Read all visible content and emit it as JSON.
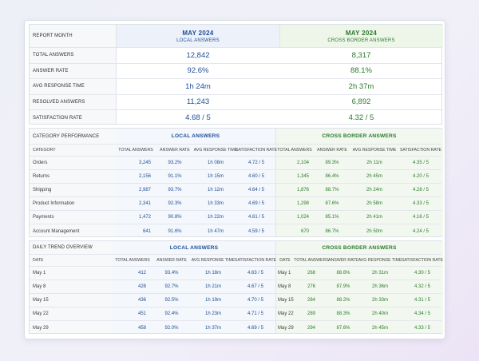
{
  "summary": {
    "header_label": "REPORT MONTH",
    "local": {
      "month": "MAY 2024",
      "label": "LOCAL ANSWERS"
    },
    "cross": {
      "month": "MAY 2024",
      "label": "CROSS BORDER ANSWERS"
    },
    "rows": [
      {
        "label": "TOTAL ANSWERS",
        "local": "12,842",
        "cross": "8,317"
      },
      {
        "label": "ANSWER RATE",
        "local": "92.6%",
        "cross": "88.1%"
      },
      {
        "label": "AVG RESPONSE TIME",
        "local": "1h 24m",
        "cross": "2h 37m"
      },
      {
        "label": "RESOLVED ANSWERS",
        "local": "11,243",
        "cross": "6,892"
      },
      {
        "label": "SATISFACTION RATE",
        "local": "4.68 / 5",
        "cross": "4.32 / 5"
      }
    ]
  },
  "category": {
    "title": "CATEGORY PERFORMANCE",
    "local_label": "LOCAL ANSWERS",
    "cross_label": "CROSS BORDER ANSWERS",
    "first_col": "CATEGORY",
    "columns": [
      "TOTAL ANSWERS",
      "ANSWER RATE",
      "AVG RESPONSE TIME",
      "SATISFACTION RATE"
    ],
    "rows": [
      {
        "name": "Orders",
        "local": [
          "3,245",
          "93.2%",
          "1h 08m",
          "4.72 / 5"
        ],
        "cross": [
          "2,104",
          "89.3%",
          "2h 11m",
          "4.35 / 5"
        ]
      },
      {
        "name": "Returns",
        "local": [
          "2,156",
          "91.1%",
          "1h 15m",
          "4.60 / 5"
        ],
        "cross": [
          "1,345",
          "86.4%",
          "2h 45m",
          "4.20 / 5"
        ]
      },
      {
        "name": "Shipping",
        "local": [
          "2,987",
          "93.7%",
          "1h 12m",
          "4.64 / 5"
        ],
        "cross": [
          "1,876",
          "88.7%",
          "2h 24m",
          "4.28 / 5"
        ]
      },
      {
        "name": "Product Information",
        "local": [
          "2,341",
          "92.3%",
          "1h 33m",
          "4.69 / 5"
        ],
        "cross": [
          "1,298",
          "87.6%",
          "2h 58m",
          "4.33 / 5"
        ]
      },
      {
        "name": "Payments",
        "local": [
          "1,472",
          "90.8%",
          "1h 22m",
          "4.61 / 5"
        ],
        "cross": [
          "1,024",
          "85.1%",
          "2h 41m",
          "4.16 / 5"
        ]
      },
      {
        "name": "Account Management",
        "local": [
          "641",
          "91.6%",
          "1h 47m",
          "4.59 / 5"
        ],
        "cross": [
          "670",
          "86.7%",
          "2h 50m",
          "4.24 / 5"
        ]
      }
    ]
  },
  "daily": {
    "title": "DAILY TREND OVERVIEW",
    "local_label": "LOCAL ANSWERS",
    "cross_label": "CROSS BORDER ANSWERS",
    "first_col": "DATE",
    "columns": [
      "TOTAL ANSWERS",
      "ANSWER RATE",
      "AVG RESPONSE TIME",
      "SATISFACTION RATE"
    ],
    "rows": [
      {
        "date": "May 1",
        "local": [
          "412",
          "93.4%",
          "1h 18m",
          "4.63 / 5"
        ],
        "cross": [
          "268",
          "88.6%",
          "2h 31m",
          "4.30 / 5"
        ]
      },
      {
        "date": "May 8",
        "local": [
          "428",
          "92.7%",
          "1h 21m",
          "4.67 / 5"
        ],
        "cross": [
          "276",
          "87.9%",
          "2h 36m",
          "4.32 / 5"
        ]
      },
      {
        "date": "May 15",
        "local": [
          "436",
          "92.5%",
          "1h 19m",
          "4.70 / 5"
        ],
        "cross": [
          "284",
          "88.2%",
          "2h 33m",
          "4.31 / 5"
        ]
      },
      {
        "date": "May 22",
        "local": [
          "451",
          "92.4%",
          "1h 23m",
          "4.71 / 5"
        ],
        "cross": [
          "289",
          "88.3%",
          "2h 40m",
          "4.34 / 5"
        ]
      },
      {
        "date": "May 29",
        "local": [
          "458",
          "92.0%",
          "1h 37m",
          "4.69 / 5"
        ],
        "cross": [
          "294",
          "87.6%",
          "2h 45m",
          "4.33 / 5"
        ]
      }
    ]
  },
  "colors": {
    "local": "#1f4e96",
    "cross": "#2b7a2b"
  }
}
